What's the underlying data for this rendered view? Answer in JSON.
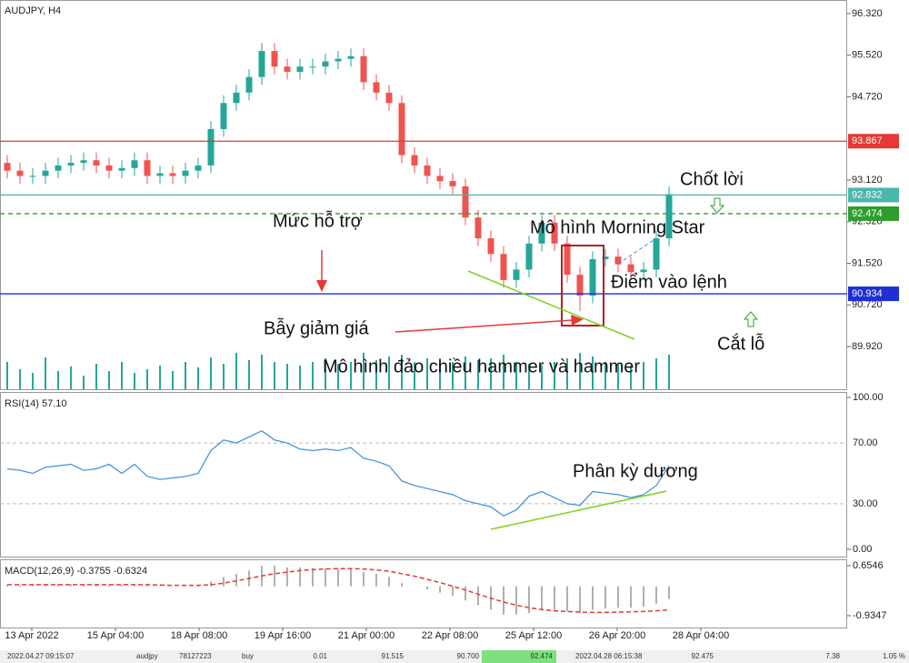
{
  "chart_data": {
    "type": "candlestick",
    "title": "AUDJPY, H4",
    "open": [
      93.45,
      93.3,
      93.2,
      93.2,
      93.3,
      93.4,
      93.45,
      93.5,
      93.4,
      93.3,
      93.35,
      93.5,
      93.2,
      93.25,
      93.2,
      93.3,
      93.4,
      94.1,
      94.6,
      94.8,
      95.1,
      95.6,
      95.3,
      95.2,
      95.3,
      95.3,
      95.4,
      95.45,
      95.5,
      95.0,
      94.8,
      94.6,
      93.6,
      93.4,
      93.2,
      93.1,
      93.0,
      92.4,
      92.0,
      91.7,
      91.2,
      91.4,
      91.9,
      92.3,
      91.9,
      91.3,
      90.9,
      91.6,
      91.65,
      91.5,
      91.35,
      91.4,
      92.0
    ],
    "high": [
      93.6,
      93.45,
      93.35,
      93.45,
      93.55,
      93.6,
      93.65,
      93.65,
      93.55,
      93.5,
      93.65,
      93.65,
      93.4,
      93.4,
      93.45,
      93.55,
      94.25,
      94.75,
      94.95,
      95.25,
      95.75,
      95.75,
      95.45,
      95.45,
      95.45,
      95.55,
      95.6,
      95.65,
      95.65,
      95.15,
      94.95,
      94.75,
      93.75,
      93.55,
      93.35,
      93.25,
      93.15,
      92.55,
      92.15,
      91.85,
      91.55,
      92.05,
      92.45,
      92.45,
      92.05,
      91.45,
      91.75,
      91.8,
      91.8,
      91.65,
      91.55,
      92.15,
      93.0
    ],
    "low": [
      93.15,
      93.05,
      93.05,
      93.05,
      93.15,
      93.25,
      93.3,
      93.25,
      93.15,
      93.15,
      93.2,
      93.05,
      93.05,
      93.05,
      93.05,
      93.15,
      93.25,
      93.95,
      94.45,
      94.65,
      94.95,
      95.15,
      95.05,
      95.05,
      95.15,
      95.15,
      95.25,
      95.3,
      94.85,
      94.65,
      94.45,
      93.45,
      93.25,
      93.05,
      92.95,
      92.85,
      92.25,
      91.85,
      91.55,
      91.05,
      91.05,
      91.25,
      91.75,
      91.75,
      91.15,
      90.6,
      90.75,
      91.45,
      91.35,
      91.2,
      91.2,
      91.25,
      91.85
    ],
    "close": [
      93.3,
      93.2,
      93.2,
      93.3,
      93.4,
      93.45,
      93.5,
      93.4,
      93.3,
      93.35,
      93.5,
      93.2,
      93.25,
      93.2,
      93.3,
      93.4,
      94.1,
      94.6,
      94.8,
      95.1,
      95.6,
      95.3,
      95.2,
      95.3,
      95.3,
      95.4,
      95.45,
      95.5,
      95.0,
      94.8,
      94.6,
      93.6,
      93.4,
      93.2,
      93.1,
      93.0,
      92.4,
      92.0,
      91.7,
      91.2,
      91.4,
      91.9,
      92.3,
      91.9,
      91.3,
      90.9,
      91.6,
      91.65,
      91.5,
      91.35,
      91.4,
      92.0,
      92.85
    ],
    "volume": [
      30,
      22,
      18,
      35,
      20,
      25,
      15,
      28,
      20,
      30,
      18,
      22,
      26,
      20,
      30,
      24,
      35,
      28,
      40,
      32,
      38,
      30,
      28,
      26,
      30,
      34,
      28,
      30,
      40,
      32,
      36,
      38,
      30,
      34,
      28,
      30,
      36,
      32,
      34,
      38,
      30,
      28,
      26,
      30,
      34,
      40,
      36,
      30,
      28,
      26,
      30,
      34,
      38
    ],
    "bull_color": "#26a69a",
    "bear_color": "#ef5350",
    "ylim": [
      89.1,
      96.58
    ],
    "yticks": [
      {
        "value": 96.32,
        "label": "96.320"
      },
      {
        "value": 95.52,
        "label": "95.520"
      },
      {
        "value": 94.72,
        "label": "94.720"
      },
      {
        "value": 93.12,
        "label": "93.120"
      },
      {
        "value": 92.32,
        "label": "92.320"
      },
      {
        "value": 91.52,
        "label": "91.520"
      },
      {
        "value": 90.72,
        "label": "90.720"
      },
      {
        "value": 89.92,
        "label": "89.920"
      }
    ],
    "levels": [
      {
        "value": 93.867,
        "color": "#e53935"
      },
      {
        "value": 92.832,
        "color": "#4db6ac"
      },
      {
        "value": 92.474,
        "color": "#2e9e2e"
      },
      {
        "value": 90.934,
        "color": "#1e2fd6"
      }
    ],
    "x_labels": [
      "13 Apr 2022",
      "15 Apr 04:00",
      "18 Apr 08:00",
      "19 Apr 16:00",
      "21 Apr 00:00",
      "22 Apr 08:00",
      "25 Apr 12:00",
      "26 Apr 20:00",
      "28 Apr 04:00"
    ],
    "annotations": [
      "Chốt lời",
      "Mức hỗ trợ",
      "Mô hình Morning Star",
      "Điểm vào lệnh",
      "Bẫy giảm giá",
      "Cắt lỗ",
      "Mô hình đảo chiều hammer và hammer",
      "Phân kỳ dương"
    ],
    "rsi": {
      "title": "RSI(14) 57.10",
      "color": "#3d8fd6",
      "values": [
        53,
        52,
        50,
        54,
        55,
        56,
        52,
        53,
        56,
        50,
        56,
        48,
        46,
        47,
        48,
        50,
        65,
        72,
        70,
        74,
        78,
        72,
        70,
        66,
        65,
        66,
        65,
        67,
        60,
        58,
        55,
        45,
        42,
        40,
        38,
        36,
        32,
        30,
        28,
        22,
        26,
        35,
        38,
        34,
        30,
        29,
        38,
        37,
        36,
        34,
        36,
        42,
        55
      ],
      "ylim": [
        0,
        100
      ],
      "yticks": [
        {
          "value": 100,
          "label": "100.00"
        },
        {
          "value": 70,
          "label": "70.00"
        },
        {
          "value": 30,
          "label": "30.00"
        },
        {
          "value": 0,
          "label": "0.00"
        }
      ]
    },
    "macd": {
      "title": "MACD(12,26,9) -0.3755 -0.6324",
      "hist_color": "#b0b0b0",
      "signal_color": "#e53935",
      "histogram": [
        0.05,
        0.04,
        0.03,
        0.05,
        0.06,
        0.07,
        0.06,
        0.05,
        0.05,
        0.04,
        0.05,
        0.03,
        0.02,
        0.01,
        0.02,
        0.03,
        0.15,
        0.3,
        0.4,
        0.5,
        0.65,
        0.65,
        0.6,
        0.6,
        0.58,
        0.57,
        0.55,
        0.55,
        0.45,
        0.4,
        0.3,
        0.1,
        0.0,
        -0.1,
        -0.2,
        -0.3,
        -0.45,
        -0.6,
        -0.75,
        -0.9,
        -0.9,
        -0.85,
        -0.75,
        -0.75,
        -0.8,
        -0.85,
        -0.75,
        -0.7,
        -0.68,
        -0.68,
        -0.65,
        -0.55,
        -0.4
      ],
      "signal": [
        0.05,
        0.05,
        0.05,
        0.05,
        0.05,
        0.05,
        0.05,
        0.05,
        0.05,
        0.05,
        0.05,
        0.05,
        0.04,
        0.03,
        0.03,
        0.03,
        0.05,
        0.1,
        0.17,
        0.25,
        0.33,
        0.4,
        0.45,
        0.5,
        0.53,
        0.55,
        0.56,
        0.56,
        0.55,
        0.52,
        0.48,
        0.4,
        0.32,
        0.22,
        0.12,
        0.0,
        -0.12,
        -0.25,
        -0.38,
        -0.5,
        -0.6,
        -0.68,
        -0.74,
        -0.78,
        -0.8,
        -0.82,
        -0.83,
        -0.83,
        -0.82,
        -0.81,
        -0.8,
        -0.78,
        -0.75
      ],
      "ylim": [
        -1.31,
        0.828
      ],
      "yticks": [
        0.6546,
        -0.9347
      ]
    },
    "status_bar": [
      "2022.04.27 09:15:07",
      "audjpy",
      "78127223",
      "buy",
      "0.01",
      "91.515",
      "90.700",
      "92.474",
      "2022.04.28 06:15:38",
      "92.475",
      "7.38",
      "1.05 %"
    ]
  }
}
